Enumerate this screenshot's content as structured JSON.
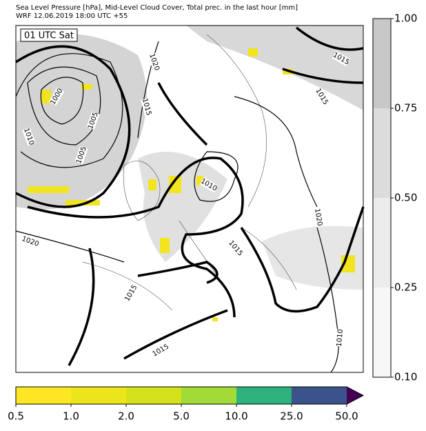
{
  "header": {
    "title_line1": "Sea Level Pressure [hPa], Mid-Level Cloud Cover, Total prec. in the last hour [mm]",
    "title_line2": "WRF 12.06.2019 18:00 UTC +55"
  },
  "time_label": "01 UTC Sat",
  "isobar_labels": [
    "1020",
    "1000",
    "1005",
    "1010",
    "1005",
    "1015",
    "1010",
    "1015",
    "1015",
    "1020",
    "1015",
    "1020",
    "1015",
    "1015",
    "1010"
  ],
  "cloud_colorbar": {
    "ticks": [
      "1.00",
      "0.75",
      "0.50",
      "0.25",
      "0.10"
    ],
    "colors": [
      "#c8c8c8",
      "#dcdcdc",
      "#ececec",
      "#f7f7f7"
    ]
  },
  "precip_colorbar": {
    "ticks": [
      "0.5",
      "1.0",
      "2.0",
      "5.0",
      "10.0",
      "25.0",
      "50.0"
    ],
    "colors": [
      "#fde725",
      "#ece51b",
      "#d5e21a",
      "#a2da37",
      "#2db27d",
      "#3b528b"
    ],
    "extend_color": "#440154"
  }
}
